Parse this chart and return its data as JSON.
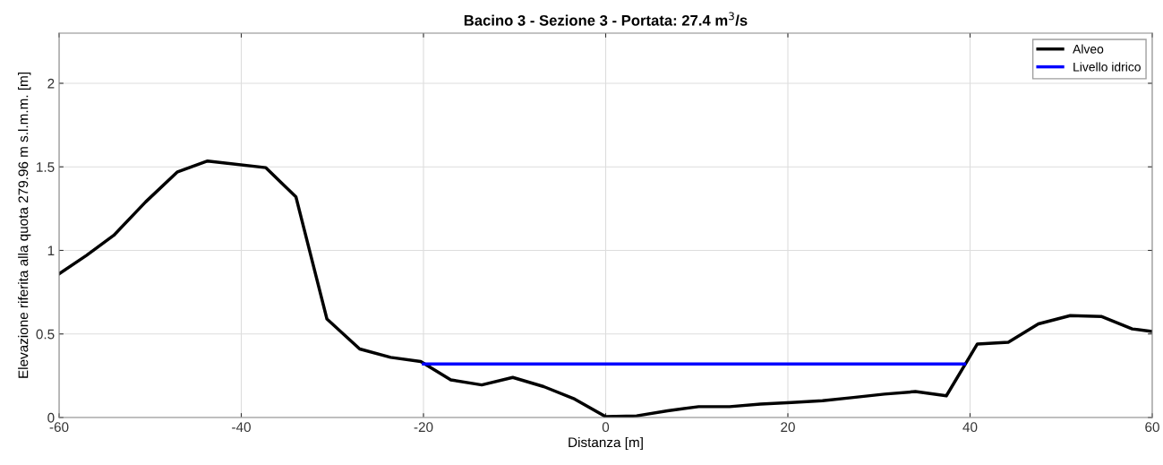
{
  "chart_data": {
    "type": "line",
    "title": "Bacino 3 - Sezione 3 - Portata: 27.4 m$^{3}$/s",
    "xlabel": "Distanza [m]",
    "ylabel": "Elevazione riferita alla quota 279.96 m s.l.m.m. [m]",
    "series": [
      {
        "name": "Alveo",
        "color": "#000000",
        "x": [
          -60,
          -57,
          -54,
          -50.5,
          -47,
          -43.7,
          -37.3,
          -34,
          -30.6,
          -27,
          -23.6,
          -20.3,
          -17,
          -13.6,
          -10.2,
          -6.8,
          -3.4,
          0,
          3.4,
          6.8,
          10.2,
          13.6,
          17,
          20.4,
          23.8,
          27.2,
          30.6,
          34,
          37.4,
          40.8,
          44.2,
          47.5,
          51,
          54.4,
          57.8,
          60
        ],
        "values": [
          0.86,
          0.97,
          1.09,
          1.29,
          1.47,
          1.535,
          1.495,
          1.32,
          0.59,
          0.41,
          0.36,
          0.335,
          0.225,
          0.195,
          0.24,
          0.185,
          0.11,
          0.005,
          0.01,
          0.04,
          0.065,
          0.065,
          0.08,
          0.09,
          0.1,
          0.12,
          0.14,
          0.155,
          0.13,
          0.44,
          0.45,
          0.56,
          0.61,
          0.605,
          0.53,
          0.515
        ]
      },
      {
        "name": "Livello idrico",
        "color": "#0000ff",
        "x": [
          -20,
          39.4
        ],
        "values": [
          0.32,
          0.32
        ]
      }
    ],
    "xlim": [
      -60,
      60
    ],
    "xticks": [
      -60,
      -40,
      -20,
      0,
      20,
      40,
      60
    ],
    "ylim": [
      0,
      2.3
    ],
    "yticks": [
      0,
      0.5,
      1,
      1.5,
      2
    ],
    "grid": true,
    "legend": "top right",
    "line_style": "solid"
  }
}
